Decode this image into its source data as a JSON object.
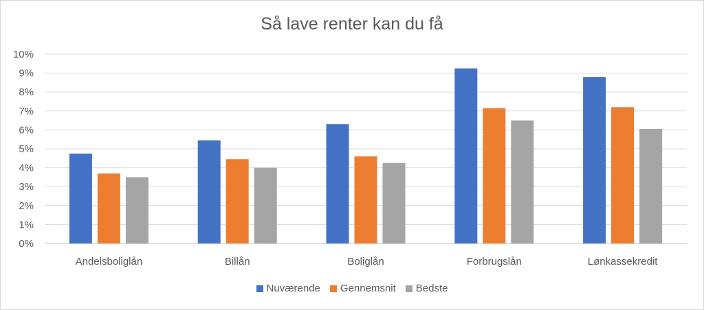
{
  "chart_data": {
    "type": "bar",
    "title": "Så lave renter kan du få",
    "xlabel": "",
    "ylabel": "",
    "categories": [
      "Andelsboliglån",
      "Billån",
      "Boliglån",
      "Forbrugslån",
      "Lønkassekredit"
    ],
    "series": [
      {
        "name": "Nuværende",
        "color": "#4472C4",
        "values": [
          4.75,
          5.45,
          6.3,
          9.25,
          8.8
        ]
      },
      {
        "name": "Gennemsnit",
        "color": "#ED7D31",
        "values": [
          3.7,
          4.45,
          4.6,
          7.15,
          7.2
        ]
      },
      {
        "name": "Bedste",
        "color": "#A5A5A5",
        "values": [
          3.5,
          4.0,
          4.25,
          6.5,
          6.05
        ]
      }
    ],
    "ylim": [
      0,
      10
    ],
    "yticks": [
      "0%",
      "1%",
      "2%",
      "3%",
      "4%",
      "5%",
      "6%",
      "7%",
      "8%",
      "9%",
      "10%"
    ],
    "grid": true,
    "legend_position": "bottom"
  }
}
